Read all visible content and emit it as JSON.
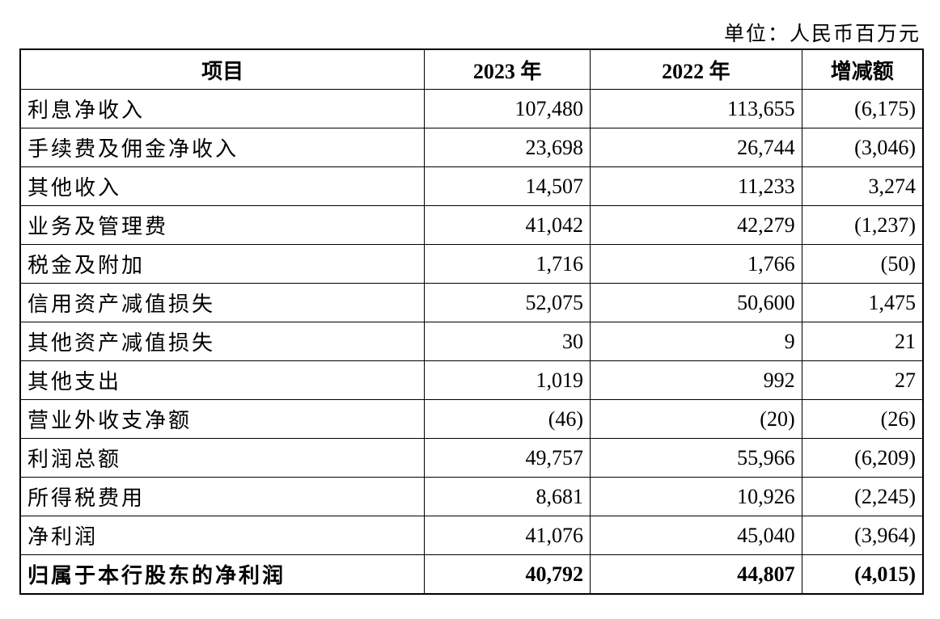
{
  "unit": "单位：人民币百万元",
  "headers": [
    "项目",
    "2023 年",
    "2022 年",
    "增减额"
  ],
  "rows": [
    [
      "利息净收入",
      "107,480",
      "113,655",
      "(6,175)"
    ],
    [
      "手续费及佣金净收入",
      "23,698",
      "26,744",
      "(3,046)"
    ],
    [
      "其他收入",
      "14,507",
      "11,233",
      "3,274"
    ],
    [
      "业务及管理费",
      "41,042",
      "42,279",
      "(1,237)"
    ],
    [
      "税金及附加",
      "1,716",
      "1,766",
      "(50)"
    ],
    [
      "信用资产减值损失",
      "52,075",
      "50,600",
      "1,475"
    ],
    [
      "其他资产减值损失",
      "30",
      "9",
      "21"
    ],
    [
      "其他支出",
      "1,019",
      "992",
      "27"
    ],
    [
      "营业外收支净额",
      "(46)",
      "(20)",
      "(26)"
    ],
    [
      "利润总额",
      "49,757",
      "55,966",
      "(6,209)"
    ],
    [
      "所得税费用",
      "8,681",
      "10,926",
      "(2,245)"
    ],
    [
      "净利润",
      "41,076",
      "45,040",
      "(3,964)"
    ],
    [
      "归属于本行股东的净利润",
      "40,792",
      "44,807",
      "(4,015)"
    ]
  ]
}
